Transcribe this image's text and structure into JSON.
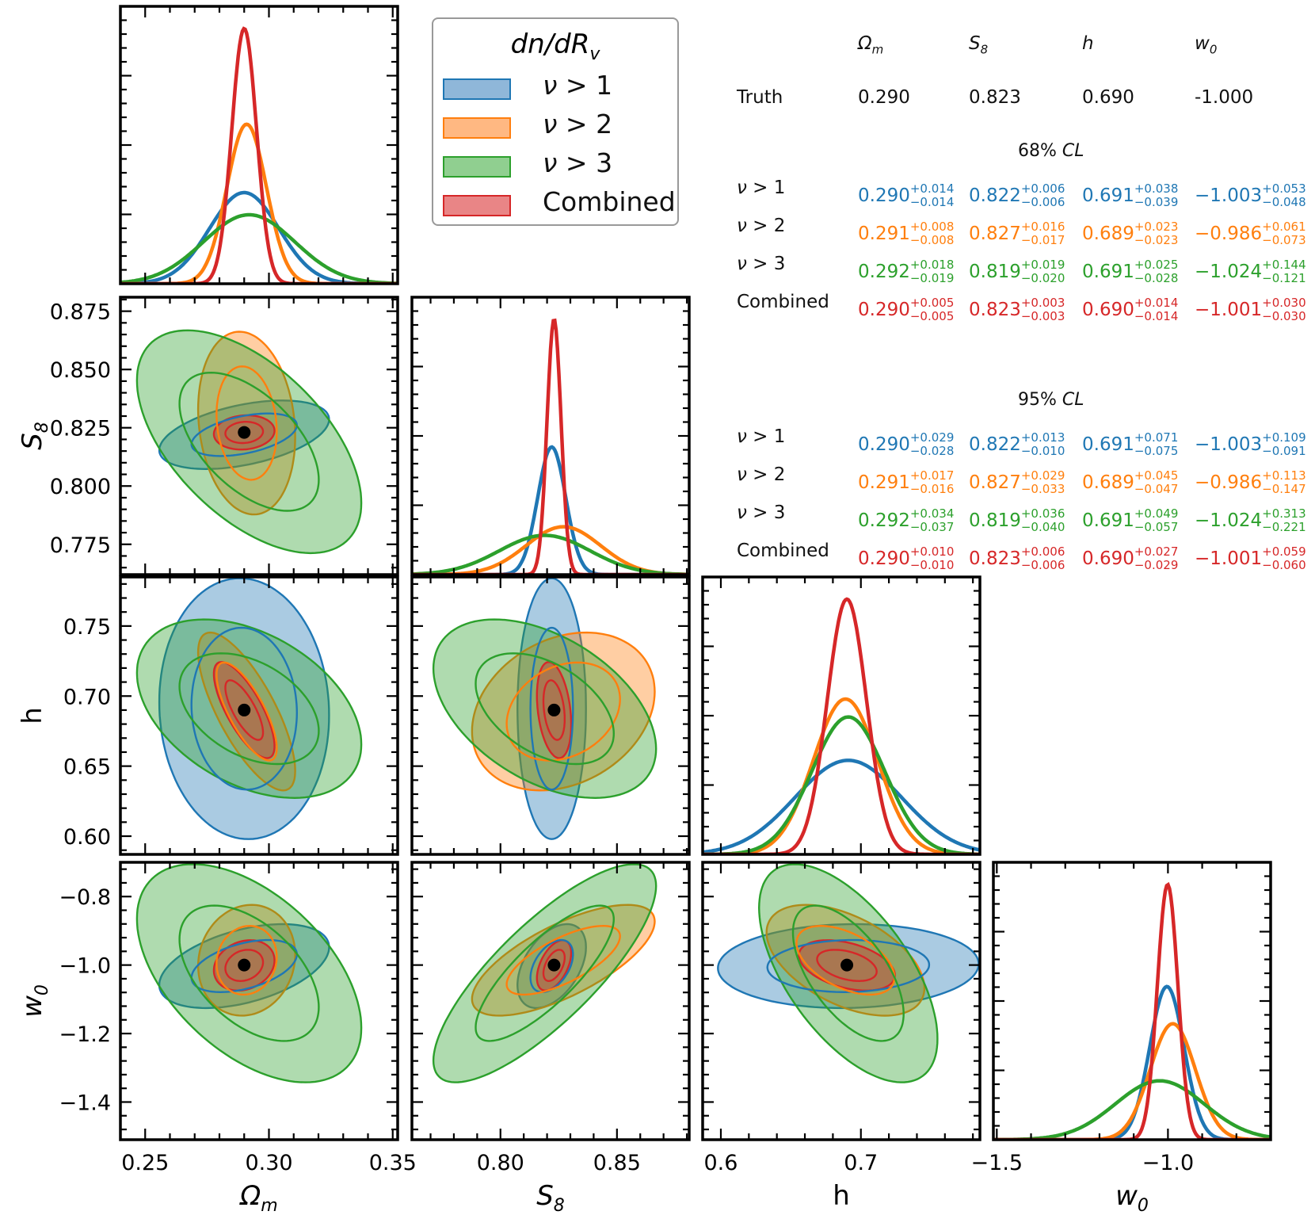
{
  "chart_data": {
    "type": "corner",
    "title": "dn/dR_v",
    "parameters": [
      {
        "key": "Om",
        "label": "Ω_m",
        "ticks": [
          0.25,
          0.3,
          0.35
        ],
        "tick_labels": [
          "0.25",
          "0.30",
          "0.35"
        ],
        "range": [
          0.24,
          0.352
        ]
      },
      {
        "key": "S8",
        "label": "S_8",
        "ticks": [
          0.775,
          0.8,
          0.825,
          0.85,
          0.875
        ],
        "tick_labels": [
          "0.775",
          "0.800",
          "0.825",
          "0.850",
          "0.875"
        ],
        "xtick_labels": [
          "0.80",
          "0.85"
        ],
        "xticks": [
          0.8,
          0.85
        ],
        "range": [
          0.762,
          0.881
        ]
      },
      {
        "key": "h",
        "label": "h",
        "ticks": [
          0.6,
          0.65,
          0.7,
          0.75
        ],
        "tick_labels": [
          "0.60",
          "0.65",
          "0.70",
          "0.75"
        ],
        "xtick_labels": [
          "0.6",
          "0.7"
        ],
        "xticks": [
          0.6,
          0.7
        ],
        "range": [
          0.587,
          0.785
        ]
      },
      {
        "key": "w0",
        "label": "w_0",
        "ticks": [
          -1.4,
          -1.2,
          -1.0,
          -0.8
        ],
        "tick_labels": [
          "−1.4",
          "−1.2",
          "−1.0",
          "−0.8"
        ],
        "xtick_labels": [
          "−1.5",
          "−1.0"
        ],
        "xticks": [
          -1.5,
          -1.0
        ],
        "range": [
          -1.51,
          -0.7
        ]
      }
    ],
    "truth": {
      "Om": 0.29,
      "S8": 0.823,
      "h": 0.69,
      "w0": -1.0
    },
    "series": [
      {
        "name": "ν > 1",
        "color": "#1f77b4",
        "mean": {
          "Om": 0.29,
          "S8": 0.822,
          "h": 0.691,
          "w0": -1.003
        },
        "sigma": {
          "Om": 0.014,
          "S8": 0.006,
          "h": 0.038,
          "w0": 0.05
        },
        "corr": {
          "Om_S8": 0.45,
          "Om_h": -0.05,
          "S8_h": 0.0,
          "Om_w0": 0.45,
          "S8_w0": 0.45,
          "h_w0": 0.05
        }
      },
      {
        "name": "ν > 2",
        "color": "#ff7f0e",
        "mean": {
          "Om": 0.291,
          "S8": 0.827,
          "h": 0.689,
          "w0": -0.986
        },
        "sigma": {
          "Om": 0.008,
          "S8": 0.016,
          "h": 0.023,
          "w0": 0.066
        },
        "corr": {
          "Om_S8": -0.15,
          "Om_h": -0.75,
          "S8_h": 0.25,
          "Om_w0": 0.1,
          "S8_w0": 0.7,
          "h_w0": -0.5
        }
      },
      {
        "name": "ν > 3",
        "color": "#2ca02c",
        "mean": {
          "Om": 0.292,
          "S8": 0.819,
          "h": 0.691,
          "w0": -1.024
        },
        "sigma": {
          "Om": 0.0185,
          "S8": 0.0195,
          "h": 0.026,
          "w0": 0.13
        },
        "corr": {
          "Om_S8": -0.55,
          "Om_h": -0.4,
          "S8_h": -0.45,
          "Om_w0": -0.5,
          "S8_w0": 0.8,
          "h_w0": -0.6
        }
      },
      {
        "name": "Combined",
        "color": "#d62728",
        "mean": {
          "Om": 0.29,
          "S8": 0.823,
          "h": 0.69,
          "w0": -1.001
        },
        "sigma": {
          "Om": 0.005,
          "S8": 0.003,
          "h": 0.014,
          "w0": 0.03
        },
        "corr": {
          "Om_S8": 0.1,
          "Om_h": -0.75,
          "S8_h": -0.3,
          "Om_w0": 0.2,
          "S8_w0": 0.5,
          "h_w0": -0.4
        }
      }
    ]
  },
  "legend": {
    "title": "dn/dR",
    "title_sub": "v",
    "items": [
      {
        "label_prefix": "ν",
        "label": " > 1",
        "color": "#1f77b4",
        "fill": "#8fb7d9"
      },
      {
        "label_prefix": "ν",
        "label": " > 2",
        "color": "#ff7f0e",
        "fill": "#ffb882"
      },
      {
        "label_prefix": "ν",
        "label": " > 3",
        "color": "#2ca02c",
        "fill": "#90cf90"
      },
      {
        "label_prefix": "",
        "label": "Combined",
        "color": "#d62728",
        "fill": "#e98586"
      }
    ]
  },
  "summary": {
    "headers": [
      "Ω_m",
      "S_8",
      "h",
      "w_0"
    ],
    "header_display": [
      {
        "b": "Ω",
        "s": "m"
      },
      {
        "b": "S",
        "s": "8"
      },
      {
        "b": "h",
        "s": ""
      },
      {
        "b": "w",
        "s": "0"
      }
    ],
    "truth_label": "Truth",
    "truth_values": [
      "0.290",
      "0.823",
      "0.690",
      "-1.000"
    ],
    "sections": [
      {
        "title": "68% CL",
        "title_num": "68%",
        "title_cl": "CL",
        "rows": [
          {
            "label": "ν > 1",
            "color": "#1f77b4",
            "values": [
              [
                "0.290",
                "+0.014",
                "−0.014"
              ],
              [
                "0.822",
                "+0.006",
                "−0.006"
              ],
              [
                "0.691",
                "+0.038",
                "−0.039"
              ],
              [
                "−1.003",
                "+0.053",
                "−0.048"
              ]
            ]
          },
          {
            "label": "ν > 2",
            "color": "#ff7f0e",
            "values": [
              [
                "0.291",
                "+0.008",
                "−0.008"
              ],
              [
                "0.827",
                "+0.016",
                "−0.017"
              ],
              [
                "0.689",
                "+0.023",
                "−0.023"
              ],
              [
                "−0.986",
                "+0.061",
                "−0.073"
              ]
            ]
          },
          {
            "label": "ν > 3",
            "color": "#2ca02c",
            "values": [
              [
                "0.292",
                "+0.018",
                "−0.019"
              ],
              [
                "0.819",
                "+0.019",
                "−0.020"
              ],
              [
                "0.691",
                "+0.025",
                "−0.028"
              ],
              [
                "−1.024",
                "+0.144",
                "−0.121"
              ]
            ]
          },
          {
            "label": "Combined",
            "color": "#d62728",
            "values": [
              [
                "0.290",
                "+0.005",
                "−0.005"
              ],
              [
                "0.823",
                "+0.003",
                "−0.003"
              ],
              [
                "0.690",
                "+0.014",
                "−0.014"
              ],
              [
                "−1.001",
                "+0.030",
                "−0.030"
              ]
            ]
          }
        ]
      },
      {
        "title": "95% CL",
        "title_num": "95%",
        "title_cl": "CL",
        "rows": [
          {
            "label": "ν > 1",
            "color": "#1f77b4",
            "values": [
              [
                "0.290",
                "+0.029",
                "−0.028"
              ],
              [
                "0.822",
                "+0.013",
                "−0.010"
              ],
              [
                "0.691",
                "+0.071",
                "−0.075"
              ],
              [
                "−1.003",
                "+0.109",
                "−0.091"
              ]
            ]
          },
          {
            "label": "ν > 2",
            "color": "#ff7f0e",
            "values": [
              [
                "0.291",
                "+0.017",
                "−0.016"
              ],
              [
                "0.827",
                "+0.029",
                "−0.033"
              ],
              [
                "0.689",
                "+0.045",
                "−0.047"
              ],
              [
                "−0.986",
                "+0.113",
                "−0.147"
              ]
            ]
          },
          {
            "label": "ν > 3",
            "color": "#2ca02c",
            "values": [
              [
                "0.292",
                "+0.034",
                "−0.037"
              ],
              [
                "0.819",
                "+0.036",
                "−0.040"
              ],
              [
                "0.691",
                "+0.049",
                "−0.057"
              ],
              [
                "−1.024",
                "+0.313",
                "−0.221"
              ]
            ]
          },
          {
            "label": "Combined",
            "color": "#d62728",
            "values": [
              [
                "0.290",
                "+0.010",
                "−0.010"
              ],
              [
                "0.823",
                "+0.006",
                "−0.006"
              ],
              [
                "0.690",
                "+0.027",
                "−0.029"
              ],
              [
                "−1.001",
                "+0.059",
                "−0.060"
              ]
            ]
          }
        ]
      }
    ]
  }
}
